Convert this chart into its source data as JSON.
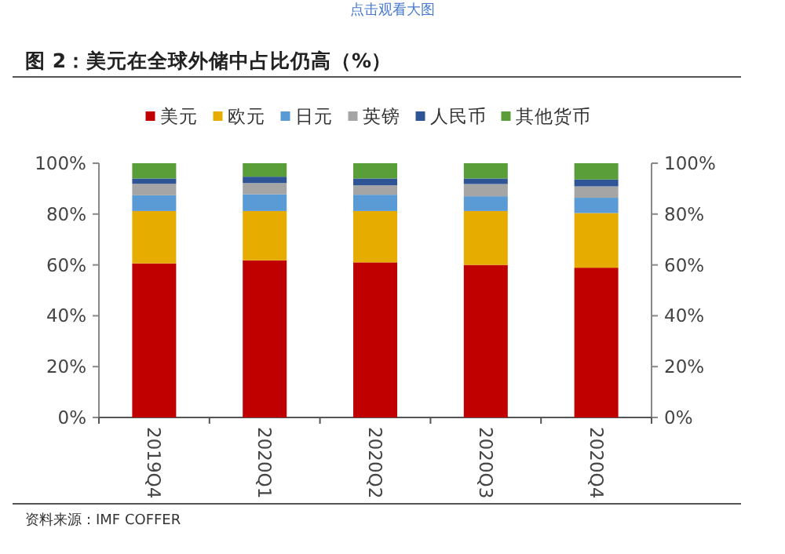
{
  "chart_data": {
    "type": "bar",
    "stacked": true,
    "title": "图 2：美元在全球外储中占比仍高（%）",
    "annotations": [
      "点击观看大图",
      "资料来源：IMF COFFER"
    ],
    "categories": [
      "2019Q4",
      "2020Q1",
      "2020Q2",
      "2020Q3",
      "2020Q4"
    ],
    "series": [
      {
        "name": "美元",
        "color": "#c00000",
        "values": [
          60.6,
          61.8,
          61.0,
          60.0,
          58.9
        ]
      },
      {
        "name": "欧元",
        "color": "#e6ac00",
        "values": [
          20.6,
          19.4,
          20.2,
          21.2,
          21.5
        ]
      },
      {
        "name": "日元",
        "color": "#5b9bd5",
        "values": [
          6.2,
          6.6,
          6.4,
          5.8,
          6.0
        ]
      },
      {
        "name": "英镑",
        "color": "#a5a5a5",
        "values": [
          4.5,
          4.4,
          3.7,
          4.8,
          4.5
        ]
      },
      {
        "name": "人民币",
        "color": "#2f5597",
        "values": [
          2.1,
          2.5,
          2.7,
          2.2,
          2.7
        ]
      },
      {
        "name": "其他货币",
        "color": "#5a9e3a",
        "values": [
          6.0,
          5.3,
          6.0,
          6.0,
          6.4
        ]
      }
    ],
    "ylim": [
      0,
      100
    ],
    "yticks": [
      {
        "value": 0,
        "label": "0%"
      },
      {
        "value": 20,
        "label": "20%"
      },
      {
        "value": 40,
        "label": "40%"
      },
      {
        "value": 60,
        "label": "60%"
      },
      {
        "value": 80,
        "label": "80%"
      },
      {
        "value": 100,
        "label": "100%"
      }
    ],
    "y2lim": [
      0,
      100
    ],
    "y2ticks": [
      {
        "value": 0,
        "label": "0%"
      },
      {
        "value": 20,
        "label": "20%"
      },
      {
        "value": 40,
        "label": "40%"
      },
      {
        "value": 60,
        "label": "60%"
      },
      {
        "value": 80,
        "label": "80%"
      },
      {
        "value": 100,
        "label": "100%"
      }
    ],
    "legend": "top",
    "grid": false
  }
}
